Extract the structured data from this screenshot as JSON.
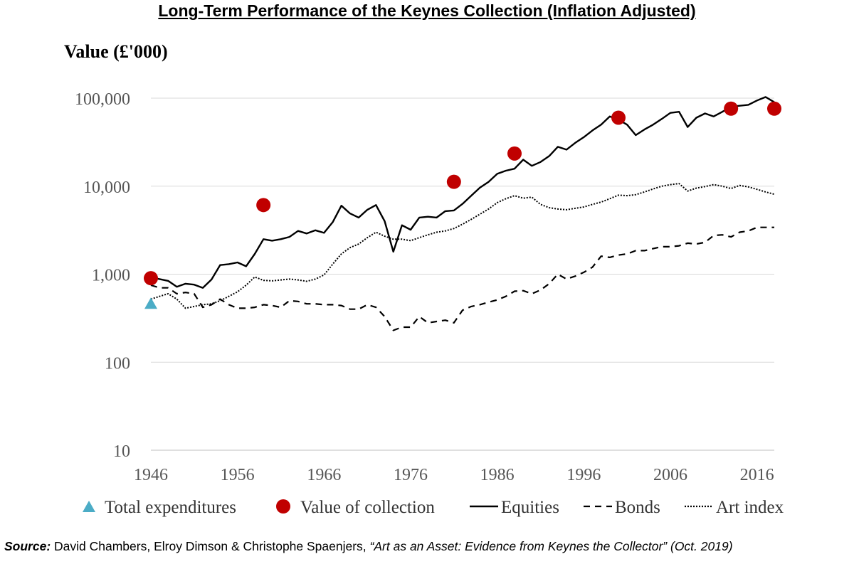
{
  "chart_data": {
    "type": "line",
    "title": "Long-Term Performance of the Keynes Collection (Inflation Adjusted)",
    "ylabel": "Value (£'000)",
    "xlabel": "",
    "yscale": "log",
    "ylim": [
      10,
      100000
    ],
    "xlim": [
      1946,
      2018
    ],
    "y_ticks": [
      10,
      100,
      1000,
      10000,
      100000
    ],
    "y_tick_labels": [
      "10",
      "100",
      "1,000",
      "10,000",
      "100,000"
    ],
    "x_ticks": [
      1946,
      1956,
      1966,
      1976,
      1986,
      1996,
      2006,
      2016
    ],
    "x_tick_labels": [
      "1946",
      "1956",
      "1966",
      "1976",
      "1986",
      "1996",
      "2006",
      "2016"
    ],
    "grid": "horizontal",
    "legend_position": "bottom",
    "series": [
      {
        "name": "Total expenditures",
        "style": "marker-triangle",
        "color": "#4bacc6",
        "points": [
          [
            1946,
            460
          ]
        ]
      },
      {
        "name": "Value of collection",
        "style": "marker-circle",
        "color": "#c00000",
        "points": [
          [
            1946,
            900
          ],
          [
            1959,
            6100
          ],
          [
            1981,
            11200
          ],
          [
            1988,
            23500
          ],
          [
            2000,
            60000
          ],
          [
            2013,
            76000
          ],
          [
            2018,
            76000
          ]
        ]
      },
      {
        "name": "Equities",
        "style": "solid",
        "color": "#000000",
        "points": [
          [
            1946,
            920
          ],
          [
            1947,
            880
          ],
          [
            1948,
            840
          ],
          [
            1949,
            720
          ],
          [
            1950,
            780
          ],
          [
            1951,
            760
          ],
          [
            1952,
            700
          ],
          [
            1953,
            870
          ],
          [
            1954,
            1270
          ],
          [
            1955,
            1300
          ],
          [
            1956,
            1360
          ],
          [
            1957,
            1230
          ],
          [
            1958,
            1700
          ],
          [
            1959,
            2500
          ],
          [
            1960,
            2400
          ],
          [
            1961,
            2500
          ],
          [
            1962,
            2650
          ],
          [
            1963,
            3100
          ],
          [
            1964,
            2900
          ],
          [
            1965,
            3150
          ],
          [
            1966,
            2950
          ],
          [
            1967,
            3900
          ],
          [
            1968,
            6000
          ],
          [
            1969,
            4900
          ],
          [
            1970,
            4400
          ],
          [
            1971,
            5400
          ],
          [
            1972,
            6100
          ],
          [
            1973,
            4000
          ],
          [
            1974,
            1800
          ],
          [
            1975,
            3600
          ],
          [
            1976,
            3200
          ],
          [
            1977,
            4400
          ],
          [
            1978,
            4500
          ],
          [
            1979,
            4400
          ],
          [
            1980,
            5200
          ],
          [
            1981,
            5300
          ],
          [
            1982,
            6300
          ],
          [
            1983,
            7800
          ],
          [
            1984,
            9600
          ],
          [
            1985,
            11200
          ],
          [
            1986,
            13800
          ],
          [
            1987,
            15000
          ],
          [
            1988,
            15800
          ],
          [
            1989,
            20000
          ],
          [
            1990,
            17000
          ],
          [
            1991,
            18800
          ],
          [
            1992,
            22000
          ],
          [
            1993,
            28000
          ],
          [
            1994,
            26000
          ],
          [
            1995,
            31000
          ],
          [
            1996,
            36000
          ],
          [
            1997,
            43000
          ],
          [
            1998,
            50000
          ],
          [
            1999,
            62000
          ],
          [
            2000,
            57000
          ],
          [
            2001,
            50000
          ],
          [
            2002,
            38000
          ],
          [
            2003,
            44000
          ],
          [
            2004,
            50000
          ],
          [
            2005,
            58000
          ],
          [
            2006,
            68000
          ],
          [
            2007,
            70000
          ],
          [
            2008,
            47000
          ],
          [
            2009,
            60000
          ],
          [
            2010,
            67000
          ],
          [
            2011,
            62000
          ],
          [
            2012,
            70000
          ],
          [
            2013,
            80000
          ],
          [
            2014,
            82000
          ],
          [
            2015,
            84000
          ],
          [
            2016,
            94000
          ],
          [
            2017,
            103000
          ],
          [
            2018,
            90000
          ]
        ]
      },
      {
        "name": "Bonds",
        "style": "dashed",
        "color": "#000000",
        "points": [
          [
            1946,
            750
          ],
          [
            1947,
            700
          ],
          [
            1948,
            700
          ],
          [
            1949,
            600
          ],
          [
            1950,
            620
          ],
          [
            1951,
            600
          ],
          [
            1952,
            420
          ],
          [
            1953,
            450
          ],
          [
            1954,
            520
          ],
          [
            1955,
            450
          ],
          [
            1956,
            410
          ],
          [
            1957,
            410
          ],
          [
            1958,
            420
          ],
          [
            1959,
            450
          ],
          [
            1960,
            440
          ],
          [
            1961,
            420
          ],
          [
            1962,
            500
          ],
          [
            1963,
            490
          ],
          [
            1964,
            460
          ],
          [
            1965,
            460
          ],
          [
            1966,
            450
          ],
          [
            1967,
            450
          ],
          [
            1968,
            440
          ],
          [
            1969,
            400
          ],
          [
            1970,
            400
          ],
          [
            1971,
            450
          ],
          [
            1972,
            420
          ],
          [
            1973,
            330
          ],
          [
            1974,
            230
          ],
          [
            1975,
            250
          ],
          [
            1976,
            250
          ],
          [
            1977,
            330
          ],
          [
            1978,
            280
          ],
          [
            1979,
            290
          ],
          [
            1980,
            300
          ],
          [
            1981,
            280
          ],
          [
            1982,
            390
          ],
          [
            1983,
            430
          ],
          [
            1984,
            450
          ],
          [
            1985,
            480
          ],
          [
            1986,
            510
          ],
          [
            1987,
            560
          ],
          [
            1988,
            640
          ],
          [
            1989,
            650
          ],
          [
            1990,
            600
          ],
          [
            1991,
            660
          ],
          [
            1992,
            780
          ],
          [
            1993,
            1000
          ],
          [
            1994,
            880
          ],
          [
            1995,
            950
          ],
          [
            1996,
            1050
          ],
          [
            1997,
            1200
          ],
          [
            1998,
            1600
          ],
          [
            1999,
            1550
          ],
          [
            2000,
            1650
          ],
          [
            2001,
            1700
          ],
          [
            2002,
            1850
          ],
          [
            2003,
            1850
          ],
          [
            2004,
            1950
          ],
          [
            2005,
            2050
          ],
          [
            2006,
            2050
          ],
          [
            2007,
            2100
          ],
          [
            2008,
            2250
          ],
          [
            2009,
            2200
          ],
          [
            2010,
            2300
          ],
          [
            2011,
            2750
          ],
          [
            2012,
            2800
          ],
          [
            2013,
            2650
          ],
          [
            2014,
            3000
          ],
          [
            2015,
            3100
          ],
          [
            2016,
            3400
          ],
          [
            2017,
            3400
          ],
          [
            2018,
            3400
          ]
        ]
      },
      {
        "name": "Art index",
        "style": "dotted",
        "color": "#000000",
        "points": [
          [
            1946,
            520
          ],
          [
            1947,
            560
          ],
          [
            1948,
            600
          ],
          [
            1949,
            520
          ],
          [
            1950,
            410
          ],
          [
            1951,
            430
          ],
          [
            1952,
            450
          ],
          [
            1953,
            460
          ],
          [
            1954,
            500
          ],
          [
            1955,
            560
          ],
          [
            1956,
            630
          ],
          [
            1957,
            750
          ],
          [
            1958,
            930
          ],
          [
            1959,
            850
          ],
          [
            1960,
            840
          ],
          [
            1961,
            860
          ],
          [
            1962,
            880
          ],
          [
            1963,
            860
          ],
          [
            1964,
            830
          ],
          [
            1965,
            880
          ],
          [
            1966,
            980
          ],
          [
            1967,
            1300
          ],
          [
            1968,
            1700
          ],
          [
            1969,
            2000
          ],
          [
            1970,
            2200
          ],
          [
            1971,
            2600
          ],
          [
            1972,
            3000
          ],
          [
            1973,
            2700
          ],
          [
            1974,
            2500
          ],
          [
            1975,
            2500
          ],
          [
            1976,
            2400
          ],
          [
            1977,
            2600
          ],
          [
            1978,
            2800
          ],
          [
            1979,
            3000
          ],
          [
            1980,
            3100
          ],
          [
            1981,
            3300
          ],
          [
            1982,
            3700
          ],
          [
            1983,
            4200
          ],
          [
            1984,
            4800
          ],
          [
            1985,
            5500
          ],
          [
            1986,
            6500
          ],
          [
            1987,
            7200
          ],
          [
            1988,
            7800
          ],
          [
            1989,
            7300
          ],
          [
            1990,
            7500
          ],
          [
            1991,
            6200
          ],
          [
            1992,
            5700
          ],
          [
            1993,
            5500
          ],
          [
            1994,
            5400
          ],
          [
            1995,
            5600
          ],
          [
            1996,
            5800
          ],
          [
            1997,
            6200
          ],
          [
            1998,
            6600
          ],
          [
            1999,
            7200
          ],
          [
            2000,
            7900
          ],
          [
            2001,
            7800
          ],
          [
            2002,
            8000
          ],
          [
            2003,
            8600
          ],
          [
            2004,
            9300
          ],
          [
            2005,
            10000
          ],
          [
            2006,
            10400
          ],
          [
            2007,
            10700
          ],
          [
            2008,
            8800
          ],
          [
            2009,
            9500
          ],
          [
            2010,
            9900
          ],
          [
            2011,
            10400
          ],
          [
            2012,
            10000
          ],
          [
            2013,
            9400
          ],
          [
            2014,
            10200
          ],
          [
            2015,
            9800
          ],
          [
            2016,
            9200
          ],
          [
            2017,
            8600
          ],
          [
            2018,
            8100
          ]
        ]
      }
    ]
  },
  "source": {
    "label": "Source:",
    "authors": " David Chambers, Elroy Dimson & Christophe Spaenjers, ",
    "work": "“Art as an Asset: Evidence from Keynes the Collector” (Oct. 2019)"
  }
}
